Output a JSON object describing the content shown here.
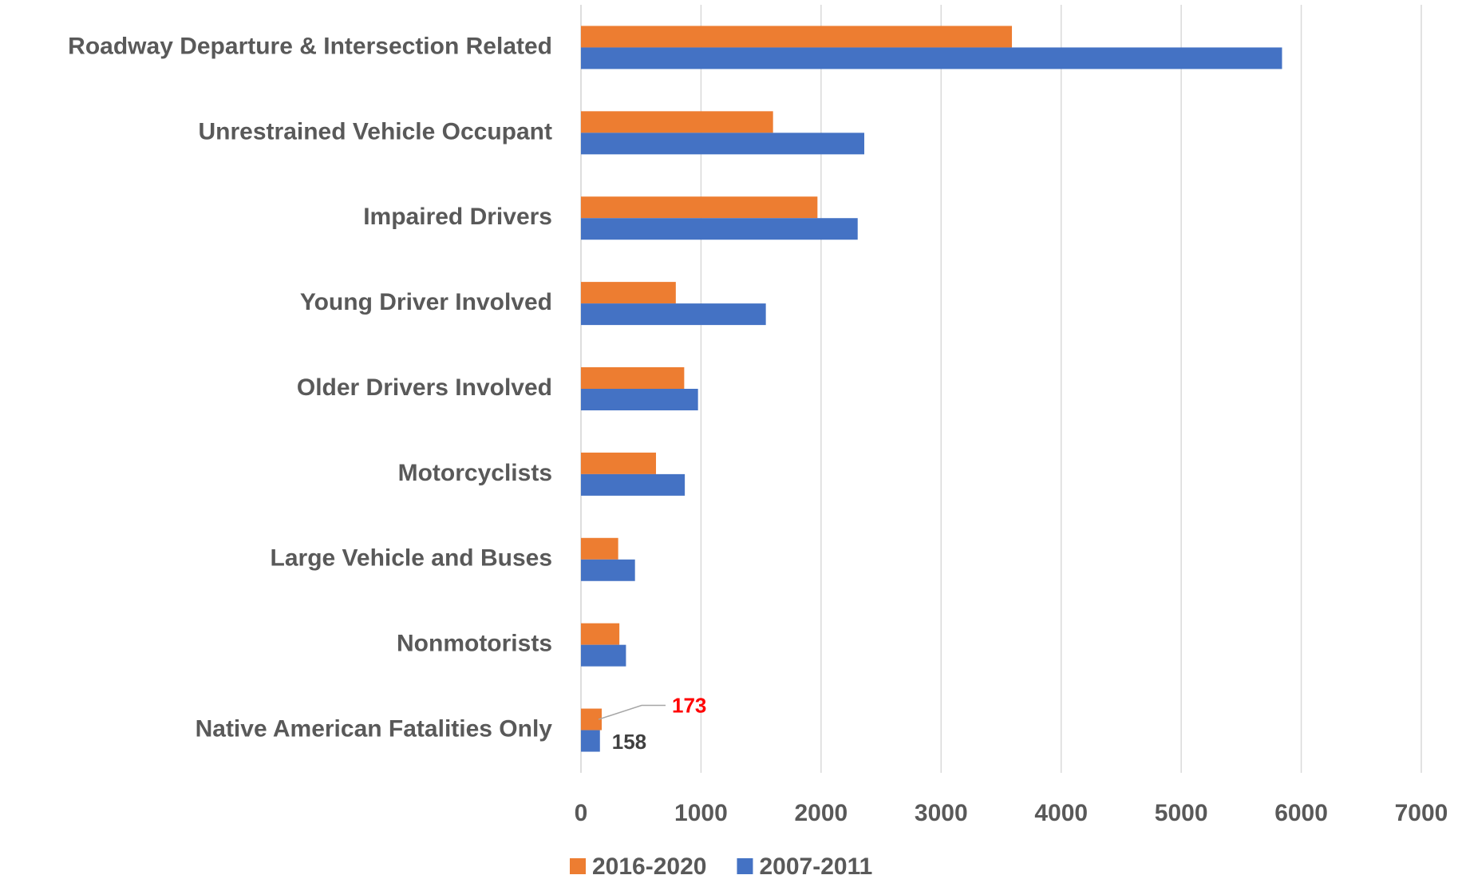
{
  "chart_data": {
    "type": "hbar",
    "categories": [
      "Roadway Departure & Intersection Related",
      "Unrestrained Vehicle Occupant",
      "Impaired Drivers",
      "Young Driver Involved",
      "Older Drivers Involved",
      "Motorcyclists",
      "Large Vehicle and Buses",
      "Nonmotorists",
      "Native American Fatalities Only"
    ],
    "series": [
      {
        "name": "2016-2020",
        "color": "#ed7d31",
        "values": [
          3590,
          1600,
          1970,
          790,
          860,
          625,
          310,
          320,
          173
        ]
      },
      {
        "name": "2007-2011",
        "color": "#4472c4",
        "values": [
          5840,
          2360,
          2305,
          1540,
          975,
          865,
          450,
          375,
          158
        ]
      }
    ],
    "data_labels": {
      "index": 8,
      "colors": [
        "#ff0000",
        "#404040"
      ]
    },
    "xlim": [
      0,
      7000
    ],
    "xticks": [
      0,
      1000,
      2000,
      3000,
      4000,
      5000,
      6000,
      7000
    ],
    "grid": true,
    "legend": "bottom"
  }
}
